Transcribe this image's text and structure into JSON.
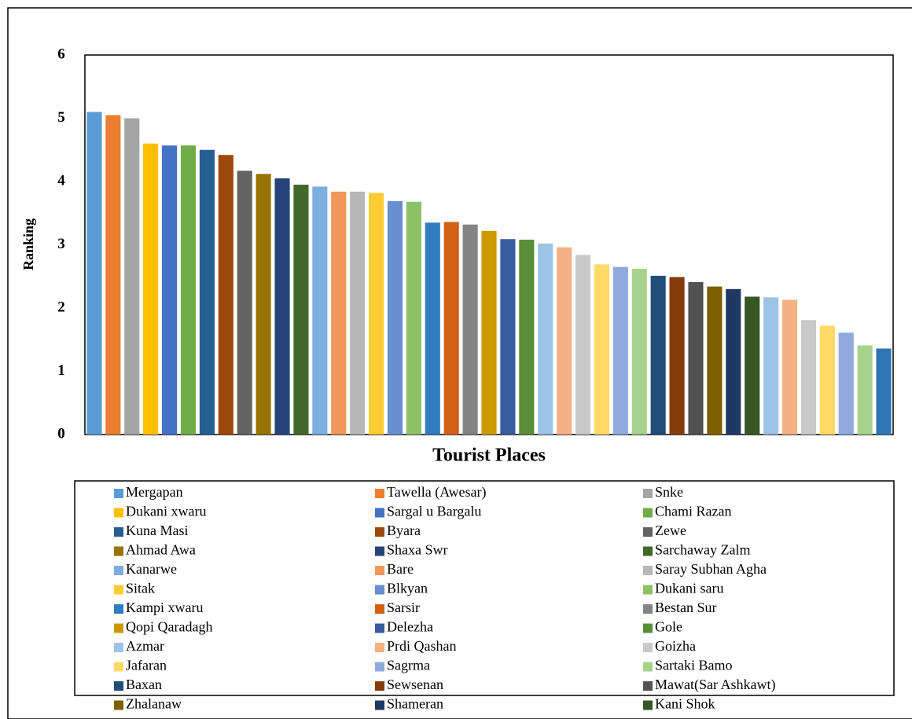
{
  "chart_data": {
    "type": "bar",
    "x_label": "Tourist Places",
    "y_label": "Ranking",
    "categories": [
      "Mergapan",
      "Tawella (Awesar)",
      "Snke",
      "Dukani xwaru",
      "Sargal u Bargalu",
      "Chami Razan",
      "Kuna Masi",
      "Byara",
      "Zewe",
      "Ahmad Awa",
      "Shaxa Swr",
      "Sarchaway Zalm",
      "Kanarwe",
      "Bare",
      "Saray Subhan Agha",
      "Sitak",
      "Blkyan",
      "Dukani saru",
      "Kampi xwaru",
      "Sarsir",
      "Bestan Sur",
      "Qopi Qaradagh",
      "Delezha",
      "Gole",
      "Azmar",
      "Prdi Qashan",
      "Goizha",
      "Jafaran",
      "Sagrma",
      "Sartaki Bamo",
      "Baxan",
      "Sewsenan",
      "Mawat(Sar Ashkawt)",
      "Zhalanaw",
      "Shameran",
      "Kani Shok",
      null,
      null,
      null,
      null,
      null,
      null,
      null
    ],
    "values": [
      5.1,
      5.05,
      5.0,
      4.6,
      4.57,
      4.57,
      4.5,
      4.42,
      4.17,
      4.12,
      4.05,
      3.95,
      3.92,
      3.84,
      3.84,
      3.82,
      3.69,
      3.68,
      3.35,
      3.36,
      3.32,
      3.22,
      3.09,
      3.08,
      3.02,
      2.96,
      2.84,
      2.69,
      2.65,
      2.62,
      2.51,
      2.49,
      2.41,
      2.34,
      2.3,
      2.18,
      2.17,
      2.13,
      1.81,
      1.72,
      1.61,
      1.41,
      1.36
    ],
    "colors": [
      "#5b9bd5",
      "#ed7d31",
      "#a5a5a5",
      "#ffc000",
      "#4472c4",
      "#70ad47",
      "#255e91",
      "#9e480e",
      "#636363",
      "#997300",
      "#264478",
      "#43682b",
      "#7cafdd",
      "#f1975a",
      "#b7b7b7",
      "#ffcd33",
      "#698ed0",
      "#8cc168",
      "#327dc2",
      "#d26012",
      "#848484",
      "#cc9a00",
      "#3a5ba0",
      "#588d3a",
      "#9dc3e6",
      "#f4b183",
      "#c9c9c9",
      "#ffd966",
      "#8faadc",
      "#a9d18e",
      "#1f4e79",
      "#843c0c",
      "#525252",
      "#7f6000",
      "#203864",
      "#375623",
      "#9dc3e6",
      "#f4b183",
      "#c9c9c9",
      "#ffd966",
      "#8faadc",
      "#a9d18e",
      "#2e75b6"
    ],
    "ylim": [
      0,
      6
    ],
    "yticks": [
      0,
      1,
      2,
      3,
      4,
      5,
      6
    ],
    "grid": false
  }
}
